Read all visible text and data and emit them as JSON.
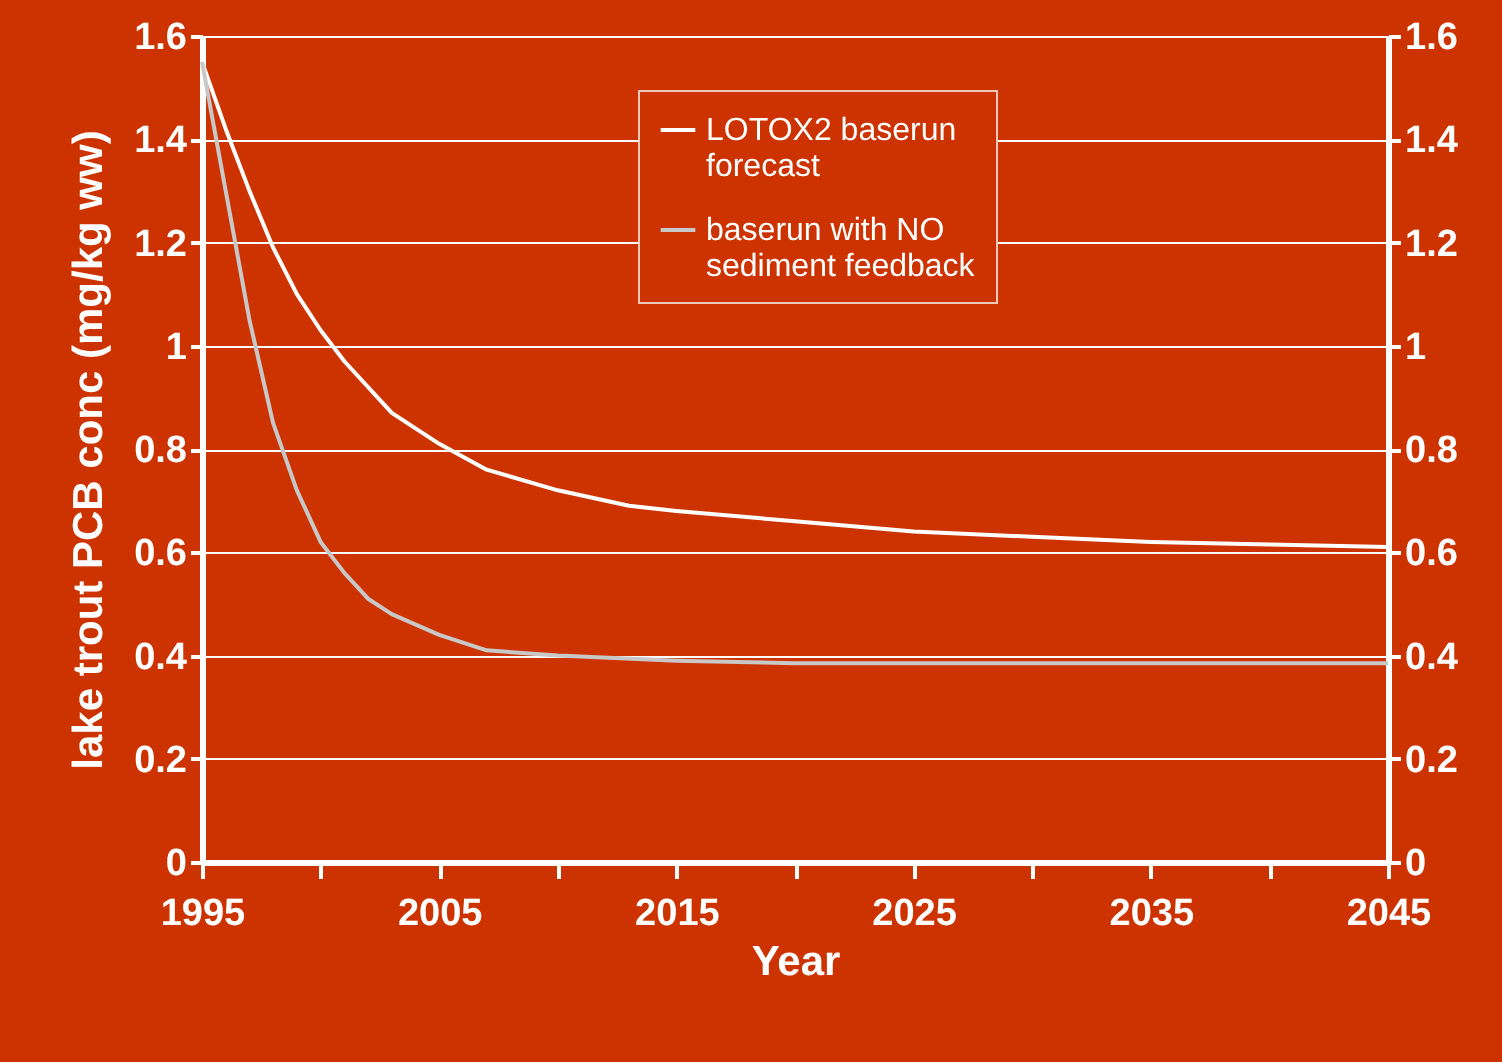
{
  "chart_data": {
    "type": "line",
    "xlabel": "Year",
    "ylabel": "lake trout PCB conc (mg/kg ww)",
    "xlim": [
      1995,
      2045
    ],
    "xticks": [
      1995,
      {
        "value": 2000,
        "label": null
      },
      2005,
      {
        "value": 2010,
        "label": null
      },
      2015,
      {
        "value": 2020,
        "label": null
      },
      2025,
      {
        "value": 2030,
        "label": null
      },
      2035,
      {
        "value": 2040,
        "label": null
      },
      2045
    ],
    "ylim": [
      0,
      1.6
    ],
    "yticks": [
      0,
      0.2,
      0.4,
      0.6,
      0.8,
      1,
      1.2,
      1.4,
      1.6
    ],
    "y2lim": [
      0,
      1.6
    ],
    "y2ticks": [
      0,
      0.2,
      0.4,
      0.6,
      0.8,
      1,
      1.2,
      1.4,
      1.6
    ],
    "grid": "y",
    "legend": "top right",
    "marker": "none",
    "line_style": "solid",
    "series": [
      {
        "name": "LOTOX2 baserun forecast",
        "color": "#ffffff",
        "x": [
          1995,
          1996,
          1997,
          1998,
          1999,
          2000,
          2001,
          2003,
          2005,
          2007,
          2010,
          2013,
          2015,
          2020,
          2025,
          2030,
          2035,
          2040,
          2045
        ],
        "values": [
          1.55,
          1.42,
          1.3,
          1.19,
          1.1,
          1.03,
          0.97,
          0.87,
          0.81,
          0.76,
          0.72,
          0.69,
          0.68,
          0.66,
          0.64,
          0.63,
          0.62,
          0.615,
          0.61
        ]
      },
      {
        "name": "baserun with NO sediment feedback",
        "color": "#c8c8c8",
        "x": [
          1995,
          1996,
          1997,
          1998,
          1999,
          2000,
          2001,
          2002,
          2003,
          2005,
          2007,
          2010,
          2015,
          2020,
          2030,
          2045
        ],
        "values": [
          1.55,
          1.3,
          1.05,
          0.85,
          0.72,
          0.62,
          0.56,
          0.51,
          0.48,
          0.44,
          0.41,
          0.4,
          0.39,
          0.385,
          0.385,
          0.385
        ]
      }
    ]
  }
}
